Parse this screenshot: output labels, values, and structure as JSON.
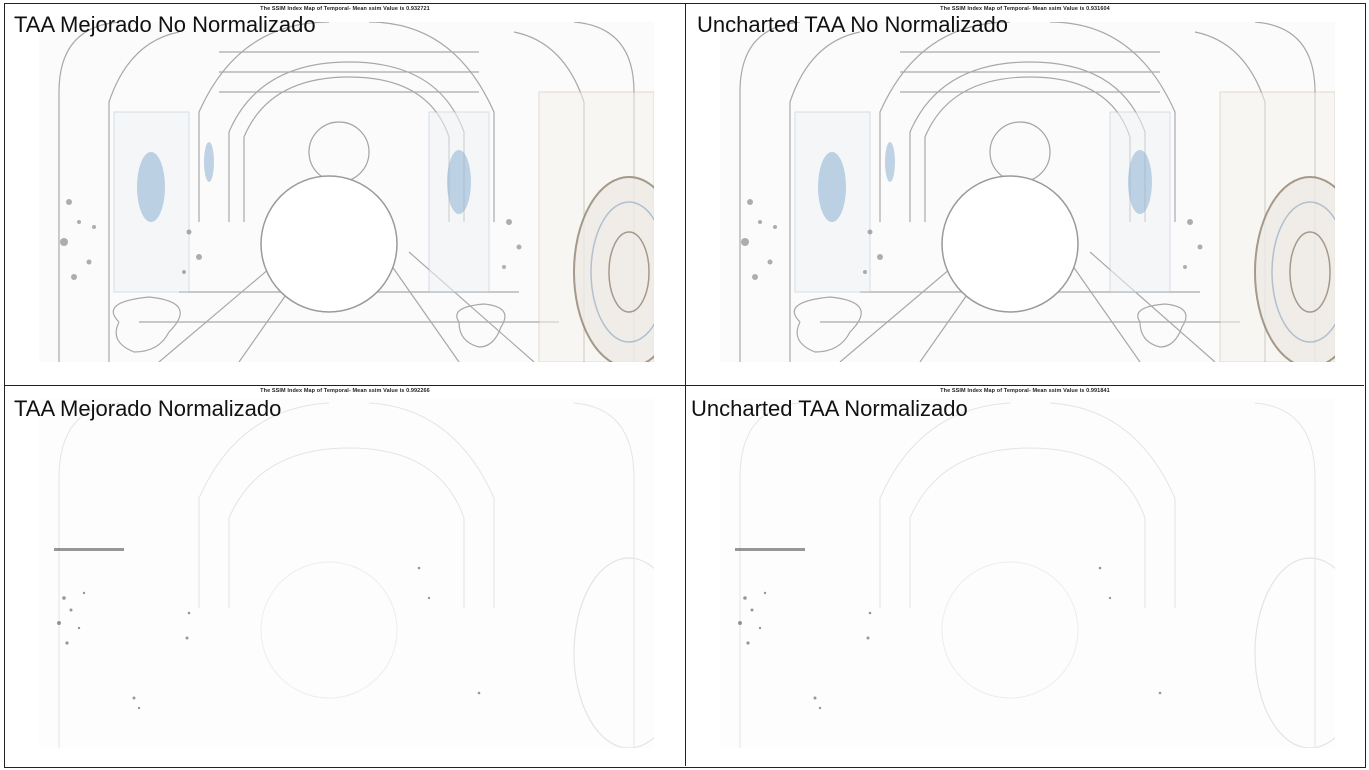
{
  "panels": [
    {
      "label": "TAA Mejorado No Normalizado",
      "plot_title": "The SSIM Index Map of Temporal- Mean ssim Value is 0.932721",
      "normalized": false
    },
    {
      "label": "Uncharted TAA No Normalizado",
      "plot_title": "The SSIM Index Map of Temporal- Mean ssim Value is 0.931604",
      "normalized": false
    },
    {
      "label": "TAA Mejorado Normalizado",
      "plot_title": "The SSIM Index Map of Temporal- Mean ssim Value is 0.992266",
      "normalized": true
    },
    {
      "label": "Uncharted TAA Normalizado",
      "plot_title": "The SSIM Index Map of Temporal- Mean ssim Value is 0.991841",
      "normalized": true
    }
  ],
  "colors": {
    "border": "#222222",
    "sketch_gray": "#8c8c8c",
    "sketch_blue": "#8fb2d3",
    "sketch_brown": "#b49a7a"
  }
}
